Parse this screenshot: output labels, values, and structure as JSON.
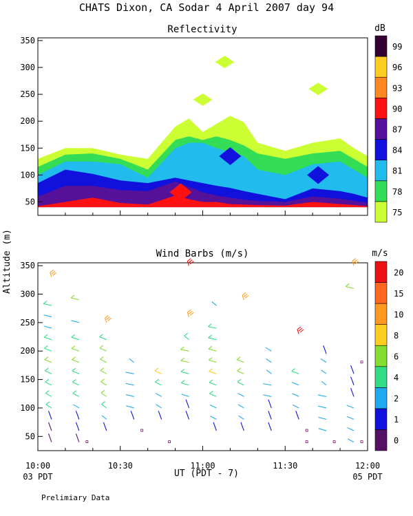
{
  "header": {
    "title": "CHATS Dixon, CA  Sodar   4 April 2007  day  94",
    "footer_note": "Prelimiary Data",
    "ylabel": "Altitude (m)",
    "xlabel": "UT  (PDT - 7)",
    "left_time": "03 PDT",
    "right_time": "05 PDT"
  },
  "chart_data": [
    {
      "type": "heatmap",
      "title": "Reflectivity",
      "xlabel": "UT  (PDT - 7)",
      "ylabel": "Altitude (m)",
      "x_ticks": [
        "10:00",
        "10:30",
        "11:00",
        "11:30",
        "12:00"
      ],
      "x_range_minutes": [
        0,
        120
      ],
      "y_ticks": [
        50,
        100,
        150,
        200,
        250,
        300,
        350
      ],
      "ylim": [
        25,
        355
      ],
      "colorbar": {
        "label": "dB",
        "levels": [
          75,
          78,
          81,
          84,
          87,
          90,
          93,
          96,
          99
        ],
        "colors": [
          "#ccff33",
          "#33dd55",
          "#22bbee",
          "#1111dd",
          "#551199",
          "#ff1111",
          "#ff8822",
          "#ffcc22",
          "#330033"
        ]
      },
      "contour_tops_m": {
        "times_min": [
          0,
          10,
          20,
          30,
          40,
          50,
          55,
          60,
          65,
          70,
          75,
          80,
          90,
          100,
          110,
          115,
          120
        ],
        "75": [
          130,
          150,
          150,
          138,
          130,
          190,
          205,
          180,
          195,
          210,
          198,
          160,
          145,
          160,
          168,
          150,
          135
        ],
        "78": [
          115,
          138,
          140,
          130,
          110,
          165,
          172,
          165,
          172,
          165,
          155,
          140,
          130,
          140,
          145,
          130,
          115
        ],
        "81": [
          100,
          125,
          125,
          120,
          95,
          150,
          160,
          160,
          150,
          142,
          135,
          110,
          100,
          120,
          125,
          110,
          95
        ],
        "84": [
          85,
          110,
          102,
          90,
          85,
          95,
          90,
          85,
          80,
          76,
          70,
          65,
          55,
          75,
          70,
          65,
          58
        ],
        "87": [
          60,
          80,
          80,
          72,
          70,
          88,
          78,
          68,
          62,
          58,
          54,
          52,
          50,
          60,
          56,
          52,
          48
        ],
        "90": [
          42,
          50,
          58,
          48,
          45,
          62,
          55,
          50,
          50,
          46,
          45,
          44,
          43,
          50,
          46,
          44,
          42
        ]
      },
      "isolated_patches": [
        {
          "time_min": 68,
          "altitude_m": 310,
          "level": 75
        },
        {
          "time_min": 60,
          "altitude_m": 240,
          "level": 75
        },
        {
          "time_min": 102,
          "altitude_m": 260,
          "level": 75
        },
        {
          "time_min": 70,
          "altitude_m": 135,
          "level": 84
        },
        {
          "time_min": 102,
          "altitude_m": 100,
          "level": 84
        },
        {
          "time_min": 52,
          "altitude_m": 68,
          "level": 90
        }
      ]
    },
    {
      "type": "scatter",
      "title": "Wind Barbs (m/s)",
      "xlabel": "UT  (PDT - 7)",
      "ylabel": "Altitude (m)",
      "x_ticks": [
        "10:00",
        "10:30",
        "11:00",
        "11:30",
        "12:00"
      ],
      "x_range_minutes": [
        0,
        120
      ],
      "y_ticks": [
        50,
        100,
        150,
        200,
        250,
        300,
        350
      ],
      "ylim": [
        25,
        355
      ],
      "colorbar": {
        "label": "m/s",
        "tick_labels": [
          "0",
          "1",
          "2",
          "4",
          "6",
          "8",
          "10",
          "15",
          "20"
        ],
        "colors": [
          "#551166",
          "#1111dd",
          "#22aaee",
          "#33dd88",
          "#88dd33",
          "#ffcc22",
          "#ff9922",
          "#ff6622",
          "#ee1111"
        ]
      },
      "barbs": [
        {
          "t": 5,
          "z": 40,
          "speed_level": 0
        },
        {
          "t": 5,
          "z": 60,
          "speed_level": 0
        },
        {
          "t": 5,
          "z": 80,
          "speed_level": 1
        },
        {
          "t": 5,
          "z": 100,
          "speed_level": 3
        },
        {
          "t": 5,
          "z": 120,
          "speed_level": 3
        },
        {
          "t": 5,
          "z": 140,
          "speed_level": 3
        },
        {
          "t": 5,
          "z": 160,
          "speed_level": 3
        },
        {
          "t": 5,
          "z": 180,
          "speed_level": 4
        },
        {
          "t": 5,
          "z": 200,
          "speed_level": 3
        },
        {
          "t": 5,
          "z": 220,
          "speed_level": 3
        },
        {
          "t": 5,
          "z": 240,
          "speed_level": 2
        },
        {
          "t": 5,
          "z": 260,
          "speed_level": 2
        },
        {
          "t": 5,
          "z": 280,
          "speed_level": 3
        },
        {
          "t": 5,
          "z": 330,
          "speed_level": 6
        },
        {
          "t": 15,
          "z": 40,
          "speed_level": 0
        },
        {
          "t": 15,
          "z": 60,
          "speed_level": 1
        },
        {
          "t": 15,
          "z": 80,
          "speed_level": 1
        },
        {
          "t": 15,
          "z": 100,
          "speed_level": 2
        },
        {
          "t": 15,
          "z": 120,
          "speed_level": 3
        },
        {
          "t": 15,
          "z": 140,
          "speed_level": 3
        },
        {
          "t": 15,
          "z": 160,
          "speed_level": 3
        },
        {
          "t": 15,
          "z": 180,
          "speed_level": 4
        },
        {
          "t": 15,
          "z": 200,
          "speed_level": 4
        },
        {
          "t": 15,
          "z": 220,
          "speed_level": 3
        },
        {
          "t": 15,
          "z": 250,
          "speed_level": 2
        },
        {
          "t": 15,
          "z": 290,
          "speed_level": 4
        },
        {
          "t": 25,
          "z": 60,
          "speed_level": 1
        },
        {
          "t": 25,
          "z": 80,
          "speed_level": 2
        },
        {
          "t": 25,
          "z": 100,
          "speed_level": 3
        },
        {
          "t": 25,
          "z": 120,
          "speed_level": 4
        },
        {
          "t": 25,
          "z": 140,
          "speed_level": 4
        },
        {
          "t": 25,
          "z": 160,
          "speed_level": 4
        },
        {
          "t": 25,
          "z": 180,
          "speed_level": 4
        },
        {
          "t": 25,
          "z": 200,
          "speed_level": 4
        },
        {
          "t": 25,
          "z": 220,
          "speed_level": 3
        },
        {
          "t": 25,
          "z": 250,
          "speed_level": 6
        },
        {
          "t": 35,
          "z": 80,
          "speed_level": 1
        },
        {
          "t": 35,
          "z": 100,
          "speed_level": 2
        },
        {
          "t": 35,
          "z": 120,
          "speed_level": 2
        },
        {
          "t": 35,
          "z": 140,
          "speed_level": 2
        },
        {
          "t": 35,
          "z": 160,
          "speed_level": 2
        },
        {
          "t": 35,
          "z": 180,
          "speed_level": 2
        },
        {
          "t": 45,
          "z": 80,
          "speed_level": 1
        },
        {
          "t": 45,
          "z": 100,
          "speed_level": 2
        },
        {
          "t": 45,
          "z": 120,
          "speed_level": 2
        },
        {
          "t": 45,
          "z": 140,
          "speed_level": 3
        },
        {
          "t": 45,
          "z": 160,
          "speed_level": 5
        },
        {
          "t": 55,
          "z": 80,
          "speed_level": 1
        },
        {
          "t": 55,
          "z": 100,
          "speed_level": 1
        },
        {
          "t": 55,
          "z": 120,
          "speed_level": 2
        },
        {
          "t": 55,
          "z": 140,
          "speed_level": 3
        },
        {
          "t": 55,
          "z": 160,
          "speed_level": 3
        },
        {
          "t": 55,
          "z": 180,
          "speed_level": 4
        },
        {
          "t": 55,
          "z": 200,
          "speed_level": 4
        },
        {
          "t": 55,
          "z": 220,
          "speed_level": 3
        },
        {
          "t": 55,
          "z": 260,
          "speed_level": 6
        },
        {
          "t": 55,
          "z": 350,
          "speed_level": 8
        },
        {
          "t": 65,
          "z": 60,
          "speed_level": 1
        },
        {
          "t": 65,
          "z": 80,
          "speed_level": 2
        },
        {
          "t": 65,
          "z": 100,
          "speed_level": 2
        },
        {
          "t": 65,
          "z": 120,
          "speed_level": 3
        },
        {
          "t": 65,
          "z": 140,
          "speed_level": 3
        },
        {
          "t": 65,
          "z": 160,
          "speed_level": 5
        },
        {
          "t": 65,
          "z": 180,
          "speed_level": 4
        },
        {
          "t": 65,
          "z": 200,
          "speed_level": 4
        },
        {
          "t": 65,
          "z": 220,
          "speed_level": 3
        },
        {
          "t": 65,
          "z": 240,
          "speed_level": 3
        },
        {
          "t": 65,
          "z": 280,
          "speed_level": 2
        },
        {
          "t": 75,
          "z": 60,
          "speed_level": 1
        },
        {
          "t": 75,
          "z": 80,
          "speed_level": 2
        },
        {
          "t": 75,
          "z": 100,
          "speed_level": 2
        },
        {
          "t": 75,
          "z": 120,
          "speed_level": 2
        },
        {
          "t": 75,
          "z": 140,
          "speed_level": 3
        },
        {
          "t": 75,
          "z": 160,
          "speed_level": 4
        },
        {
          "t": 75,
          "z": 180,
          "speed_level": 4
        },
        {
          "t": 75,
          "z": 290,
          "speed_level": 6
        },
        {
          "t": 85,
          "z": 60,
          "speed_level": 1
        },
        {
          "t": 85,
          "z": 80,
          "speed_level": 1
        },
        {
          "t": 85,
          "z": 100,
          "speed_level": 1
        },
        {
          "t": 85,
          "z": 120,
          "speed_level": 2
        },
        {
          "t": 85,
          "z": 140,
          "speed_level": 2
        },
        {
          "t": 85,
          "z": 160,
          "speed_level": 2
        },
        {
          "t": 85,
          "z": 180,
          "speed_level": 2
        },
        {
          "t": 85,
          "z": 200,
          "speed_level": 2
        },
        {
          "t": 95,
          "z": 80,
          "speed_level": 1
        },
        {
          "t": 95,
          "z": 100,
          "speed_level": 2
        },
        {
          "t": 95,
          "z": 120,
          "speed_level": 2
        },
        {
          "t": 95,
          "z": 140,
          "speed_level": 2
        },
        {
          "t": 95,
          "z": 160,
          "speed_level": 3
        },
        {
          "t": 95,
          "z": 230,
          "speed_level": 8
        },
        {
          "t": 105,
          "z": 60,
          "speed_level": 2
        },
        {
          "t": 105,
          "z": 80,
          "speed_level": 2
        },
        {
          "t": 105,
          "z": 100,
          "speed_level": 2
        },
        {
          "t": 105,
          "z": 120,
          "speed_level": 2
        },
        {
          "t": 105,
          "z": 140,
          "speed_level": 2
        },
        {
          "t": 105,
          "z": 160,
          "speed_level": 2
        },
        {
          "t": 105,
          "z": 180,
          "speed_level": 2
        },
        {
          "t": 105,
          "z": 195,
          "speed_level": 1
        },
        {
          "t": 115,
          "z": 40,
          "speed_level": 2
        },
        {
          "t": 115,
          "z": 60,
          "speed_level": 2
        },
        {
          "t": 115,
          "z": 80,
          "speed_level": 2
        },
        {
          "t": 115,
          "z": 100,
          "speed_level": 2
        },
        {
          "t": 115,
          "z": 120,
          "speed_level": 1
        },
        {
          "t": 115,
          "z": 140,
          "speed_level": 1
        },
        {
          "t": 115,
          "z": 160,
          "speed_level": 1
        },
        {
          "t": 115,
          "z": 310,
          "speed_level": 4
        },
        {
          "t": 115,
          "z": 350,
          "speed_level": 6
        }
      ],
      "calm_markers": [
        {
          "t": 18,
          "z": 40
        },
        {
          "t": 38,
          "z": 60
        },
        {
          "t": 48,
          "z": 40
        },
        {
          "t": 98,
          "z": 40
        },
        {
          "t": 98,
          "z": 60
        },
        {
          "t": 108,
          "z": 40
        },
        {
          "t": 118,
          "z": 40
        },
        {
          "t": 118,
          "z": 180
        }
      ]
    }
  ]
}
